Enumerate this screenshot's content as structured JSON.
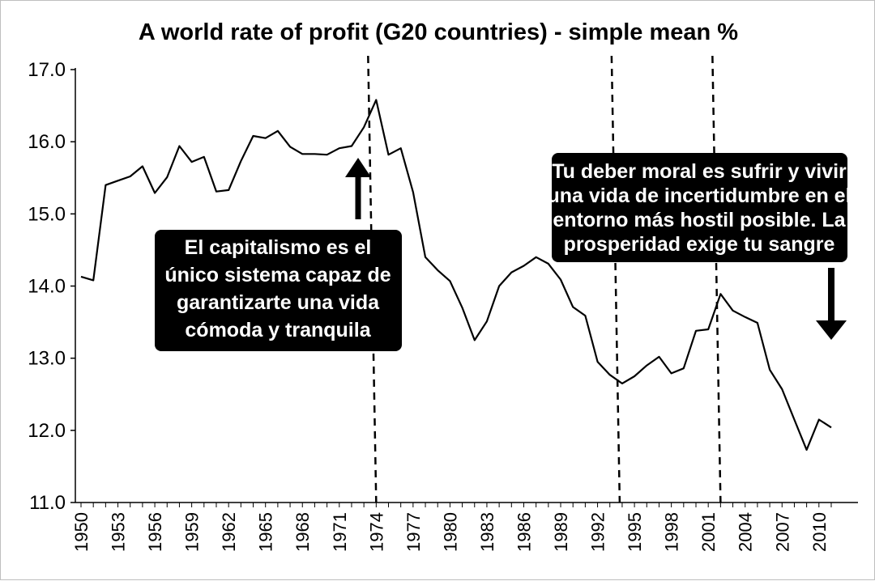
{
  "chart_data": {
    "type": "line",
    "title": "A world rate of profit (G20 countries) - simple mean %",
    "xlabel": "",
    "ylabel": "",
    "ylim": [
      11.0,
      17.0
    ],
    "y_ticks": [
      "11.0",
      "12.0",
      "13.0",
      "14.0",
      "15.0",
      "16.0",
      "17.0"
    ],
    "x_tick_labels": [
      "1950",
      "1953",
      "1956",
      "1959",
      "1962",
      "1965",
      "1968",
      "1971",
      "1974",
      "1977",
      "1980",
      "1983",
      "1986",
      "1989",
      "1992",
      "1995",
      "1998",
      "2001",
      "2004",
      "2007",
      "2010"
    ],
    "grid": false,
    "legend": "none",
    "line_color": "#000000",
    "series": [
      {
        "x": [
          1950,
          1951,
          1952,
          1953,
          1954,
          1955,
          1956,
          1957,
          1958,
          1959,
          1960,
          1961,
          1962,
          1963,
          1964,
          1965,
          1966,
          1967,
          1968,
          1969,
          1970,
          1971,
          1972,
          1973,
          1974,
          1975,
          1976,
          1977,
          1978,
          1979,
          1980,
          1981,
          1982,
          1983,
          1984,
          1985,
          1986,
          1987,
          1988,
          1989,
          1990,
          1991,
          1992,
          1993,
          1994,
          1995,
          1996,
          1997,
          1998,
          1999,
          2000,
          2001,
          2002,
          2003,
          2004,
          2005,
          2006,
          2007,
          2008,
          2009,
          2010,
          2011
        ],
        "values": [
          14.13,
          14.08,
          15.4,
          15.46,
          15.52,
          15.66,
          15.29,
          15.51,
          15.94,
          15.72,
          15.79,
          15.31,
          15.33,
          15.73,
          16.08,
          16.05,
          16.15,
          15.93,
          15.83,
          15.83,
          15.82,
          15.91,
          15.94,
          16.2,
          16.58,
          15.82,
          15.91,
          15.3,
          14.4,
          14.22,
          14.07,
          13.7,
          13.25,
          13.51,
          14.0,
          14.19,
          14.28,
          14.4,
          14.31,
          14.09,
          13.71,
          13.59,
          12.95,
          12.77,
          12.65,
          12.75,
          12.9,
          13.02,
          12.79,
          12.86,
          13.38,
          13.4,
          13.89,
          13.66,
          13.57,
          13.49,
          12.84,
          12.57,
          12.15,
          11.73,
          12.15,
          12.04
        ]
      }
    ],
    "vlines": [
      1974,
      1993.8,
      2002
    ],
    "annotations": [
      {
        "lines": [
          "El capitalismo es el",
          "único sistema capaz de",
          "garantizarte una vida",
          "cómoda y tranquila"
        ],
        "arrow": "up"
      },
      {
        "lines": [
          "Tu deber moral es sufrir y vivir",
          "una vida de incertidumbre en el",
          "entorno más hostil posible. La",
          "prosperidad exige tu sangre"
        ],
        "arrow": "down"
      }
    ]
  }
}
